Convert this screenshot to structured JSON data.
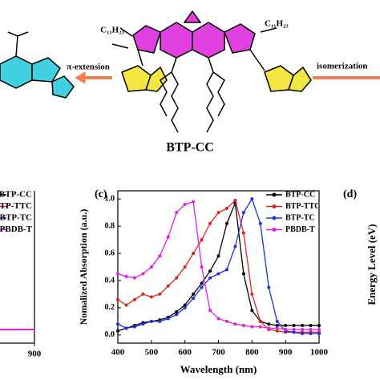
{
  "scheme": {
    "left_arrow": "π-extension",
    "right_arrow": "isomerization",
    "molecule": "BTP-CC",
    "chain": "C₁₁H₂₃"
  },
  "left_panel": {
    "legend": [
      "BTP-CC",
      "BTP-TTC",
      "BTP-TC",
      "PBDB-T"
    ],
    "xticks": [
      900
    ]
  },
  "right_panel": {
    "label": "(d)",
    "ylabel": "Energy Level (eV)"
  },
  "chart_data": {
    "type": "line",
    "label": "(c)",
    "xlabel": "Wavelength (nm)",
    "ylabel": "Nomalized Absorption (a.u.)",
    "x": [
      400,
      425,
      450,
      475,
      500,
      525,
      550,
      575,
      600,
      625,
      650,
      675,
      700,
      725,
      750,
      775,
      800,
      825,
      850,
      875,
      900,
      925,
      950,
      975,
      1000
    ],
    "series": [
      {
        "name": "BTP-CC",
        "color": "#000000",
        "values": [
          0.03,
          0.05,
          0.07,
          0.09,
          0.1,
          0.11,
          0.13,
          0.17,
          0.22,
          0.3,
          0.38,
          0.47,
          0.58,
          0.82,
          0.97,
          0.45,
          0.18,
          0.1,
          0.08,
          0.07,
          0.07,
          0.07,
          0.07,
          0.07,
          0.07
        ]
      },
      {
        "name": "BTP-TTC",
        "color": "#e0201c",
        "values": [
          0.26,
          0.22,
          0.26,
          0.3,
          0.28,
          0.3,
          0.36,
          0.42,
          0.5,
          0.6,
          0.7,
          0.82,
          0.9,
          0.93,
          0.99,
          0.75,
          0.3,
          0.1,
          0.04,
          0.03,
          0.02,
          0.02,
          0.02,
          0.02,
          0.02
        ]
      },
      {
        "name": "BTP-TC",
        "color": "#2030d8",
        "values": [
          0.08,
          0.05,
          0.06,
          0.08,
          0.1,
          0.1,
          0.12,
          0.15,
          0.2,
          0.27,
          0.35,
          0.42,
          0.45,
          0.48,
          0.65,
          0.9,
          1.0,
          0.82,
          0.35,
          0.1,
          0.03,
          0.02,
          0.01,
          0.01,
          0.01
        ]
      },
      {
        "name": "PBDB-T",
        "color": "#e020e0",
        "values": [
          0.45,
          0.43,
          0.42,
          0.45,
          0.5,
          0.58,
          0.72,
          0.9,
          0.96,
          0.98,
          0.5,
          0.18,
          0.12,
          0.1,
          0.08,
          0.07,
          0.06,
          0.06,
          0.05,
          0.05,
          0.04,
          0.04,
          0.04,
          0.04,
          0.04
        ]
      }
    ],
    "xlim": [
      400,
      1000
    ],
    "xticks": [
      400,
      500,
      600,
      700,
      800,
      900,
      1000
    ],
    "ylim": [
      -0.06,
      1.06
    ],
    "yticks": [
      {
        "value": 0,
        "label": "0.0"
      },
      0.2,
      0.4,
      0.6,
      0.8,
      {
        "value": 1,
        "label": "1.0"
      }
    ],
    "legend": "upper right"
  }
}
